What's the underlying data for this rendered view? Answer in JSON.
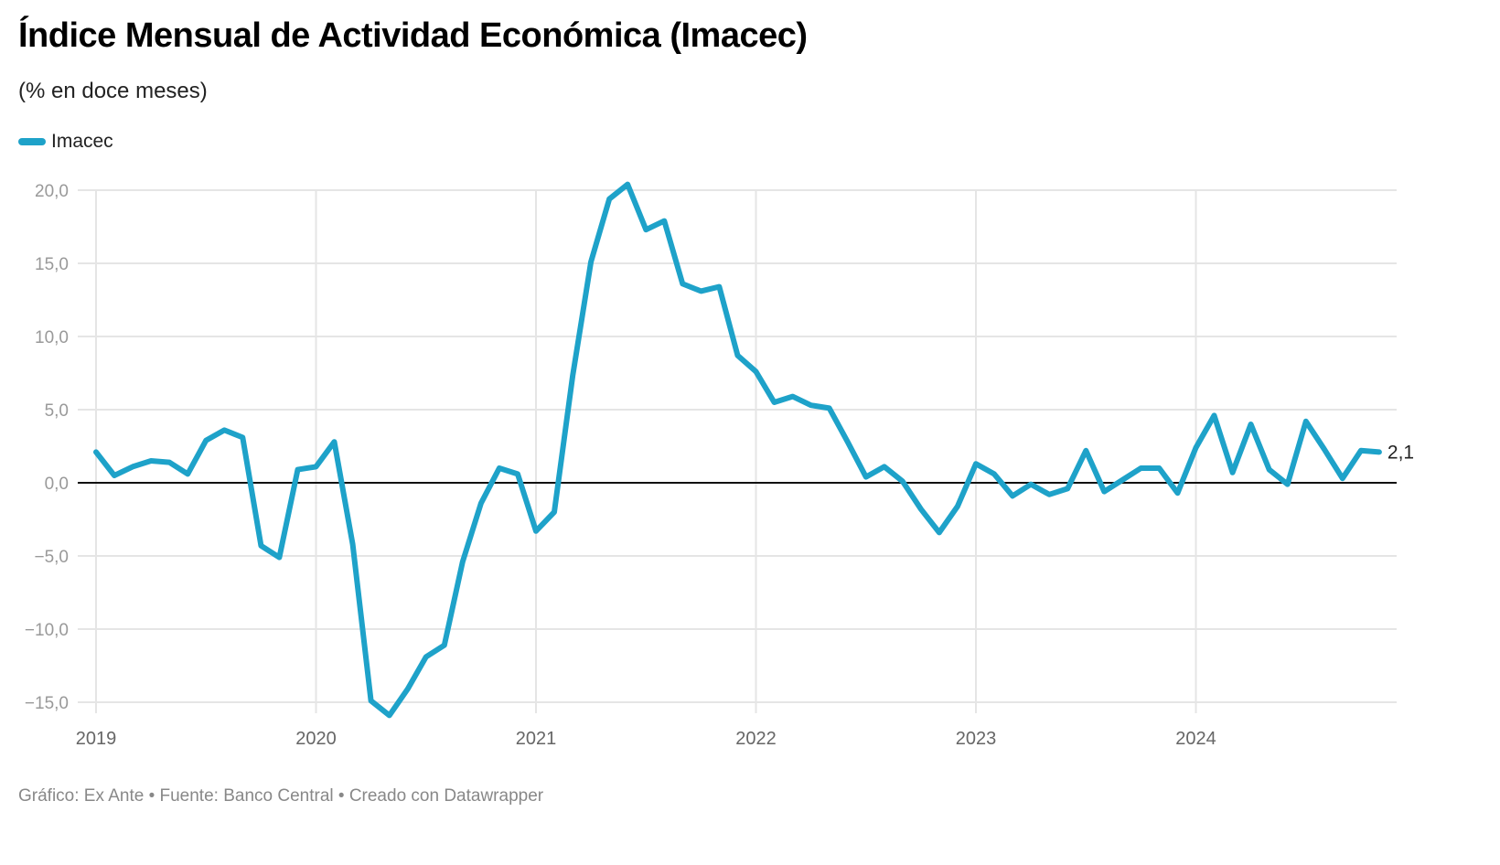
{
  "header": {
    "title": "Índice Mensual de Actividad Económica (Imacec)",
    "subtitle": "(% en doce meses)"
  },
  "legend": {
    "label": "Imacec",
    "color": "#1ea2c9"
  },
  "footer": {
    "text": "Gráfico: Ex Ante • Fuente: Banco Central • Creado con Datawrapper"
  },
  "chart_data": {
    "type": "line",
    "title": "Índice Mensual de Actividad Económica (Imacec)",
    "subtitle": "(% en doce meses)",
    "xlabel": "",
    "ylabel": "",
    "ylim": [
      -16,
      20.5
    ],
    "yticks": [
      20,
      15,
      10,
      5,
      0,
      -5,
      -10,
      -15
    ],
    "ytick_labels": [
      "20,0",
      "15,0",
      "10,0",
      "5,0",
      "0,0",
      "−5,0",
      "−10,0",
      "−15,0"
    ],
    "xticks": [
      "2019",
      "2020",
      "2021",
      "2022",
      "2023",
      "2024"
    ],
    "x_start": "2019-01",
    "x_frequency": "monthly",
    "grid": true,
    "legend_position": "top-left",
    "end_label": "2,1",
    "series": [
      {
        "name": "Imacec",
        "color": "#1ea2c9",
        "values": [
          2.1,
          0.5,
          1.1,
          1.5,
          1.4,
          0.6,
          2.9,
          3.6,
          3.1,
          -4.3,
          -5.1,
          0.9,
          1.1,
          2.8,
          -4.2,
          -14.9,
          -15.9,
          -14.1,
          -11.9,
          -11.1,
          -5.4,
          -1.4,
          1.0,
          0.6,
          -3.3,
          -2.0,
          7.3,
          15.1,
          19.4,
          20.4,
          17.3,
          17.9,
          13.6,
          13.1,
          13.4,
          8.7,
          7.6,
          5.5,
          5.9,
          5.3,
          5.1,
          2.8,
          0.4,
          1.1,
          0.1,
          -1.8,
          -3.4,
          -1.6,
          1.3,
          0.6,
          -0.9,
          -0.1,
          -0.8,
          -0.4,
          2.2,
          -0.6,
          0.2,
          1.0,
          1.0,
          -0.7,
          2.4,
          4.6,
          0.7,
          4.0,
          0.9,
          -0.1,
          4.2,
          2.3,
          0.3,
          2.2,
          2.1
        ]
      }
    ]
  }
}
